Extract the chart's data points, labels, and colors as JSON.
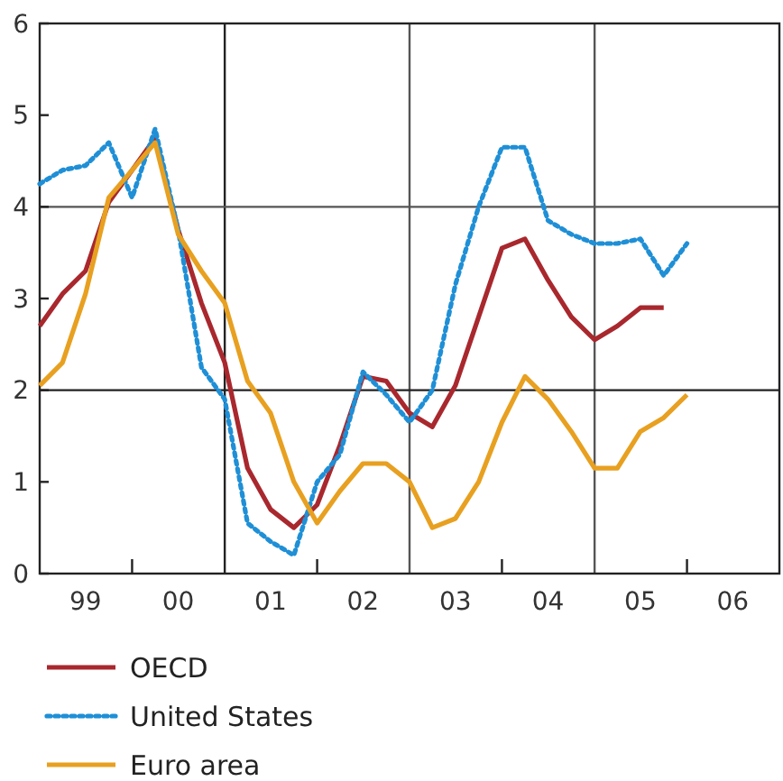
{
  "chart_data": {
    "type": "line",
    "x": [
      "1999-01",
      "1999-04",
      "1999-07",
      "1999-10",
      "2000-01",
      "2000-04",
      "2000-07",
      "2000-10",
      "2001-01",
      "2001-04",
      "2001-07",
      "2001-10",
      "2002-01",
      "2002-04",
      "2002-07",
      "2002-10",
      "2003-01",
      "2003-04",
      "2003-07",
      "2003-10",
      "2004-01",
      "2004-04",
      "2004-07",
      "2004-10",
      "2005-01",
      "2005-04",
      "2005-07",
      "2005-10",
      "2006-01"
    ],
    "series": [
      {
        "name": "OECD",
        "color": "#a8282e",
        "line_style": "solid",
        "values": [
          2.7,
          3.05,
          3.3,
          4.05,
          4.4,
          4.75,
          3.75,
          2.95,
          2.3,
          1.15,
          0.7,
          0.5,
          0.75,
          1.4,
          2.15,
          2.1,
          1.75,
          1.6,
          2.05,
          2.8,
          3.55,
          3.65,
          3.2,
          2.8,
          2.55,
          2.7,
          2.9,
          2.9,
          null
        ]
      },
      {
        "name": "United States",
        "color": "#1f8fd6",
        "line_style": "dotted",
        "values": [
          4.25,
          4.4,
          4.45,
          4.7,
          4.1,
          4.85,
          3.75,
          2.25,
          1.9,
          0.55,
          0.35,
          0.2,
          1.0,
          1.3,
          2.2,
          1.95,
          1.65,
          2.0,
          3.15,
          4.0,
          4.65,
          4.65,
          3.85,
          3.7,
          3.6,
          3.6,
          3.65,
          3.25,
          3.6
        ]
      },
      {
        "name": "Euro area",
        "color": "#e8a020",
        "line_style": "solid",
        "values": [
          2.05,
          2.3,
          3.05,
          4.1,
          4.4,
          4.7,
          3.7,
          3.3,
          2.95,
          2.1,
          1.75,
          1.0,
          0.55,
          0.9,
          1.2,
          1.2,
          1.0,
          0.5,
          0.6,
          1.0,
          1.65,
          2.15,
          1.9,
          1.55,
          1.15,
          1.15,
          1.55,
          1.7,
          1.95
        ]
      }
    ],
    "xlim": [
      "1999-01",
      "2007-01"
    ],
    "xticks": [
      {
        "value": "1999-07",
        "label": "99"
      },
      {
        "value": "2000-01",
        "label": null
      },
      {
        "value": "2000-07",
        "label": "00"
      },
      {
        "value": "2001-07",
        "label": "01"
      },
      {
        "value": "2002-01",
        "label": null
      },
      {
        "value": "2002-07",
        "label": "02"
      },
      {
        "value": "2003-07",
        "label": "03"
      },
      {
        "value": "2004-01",
        "label": null
      },
      {
        "value": "2004-07",
        "label": "04"
      },
      {
        "value": "2005-07",
        "label": "05"
      },
      {
        "value": "2006-01",
        "label": null
      },
      {
        "value": "2006-07",
        "label": "06"
      }
    ],
    "ylim": [
      0,
      6
    ],
    "yticks": [
      0,
      1,
      2,
      3,
      4,
      5,
      6
    ],
    "ref_lines": [
      {
        "axis": "x",
        "value": "2001-01",
        "color": "#222222"
      },
      {
        "axis": "x",
        "value": "2003-01",
        "color": "#555555"
      },
      {
        "axis": "x",
        "value": "2005-01",
        "color": "#555555"
      },
      {
        "axis": "y",
        "value": 2,
        "color": "#222222"
      },
      {
        "axis": "y",
        "value": 4,
        "color": "#555555"
      }
    ],
    "marker": "none",
    "grid": false,
    "legend": "bottom"
  }
}
